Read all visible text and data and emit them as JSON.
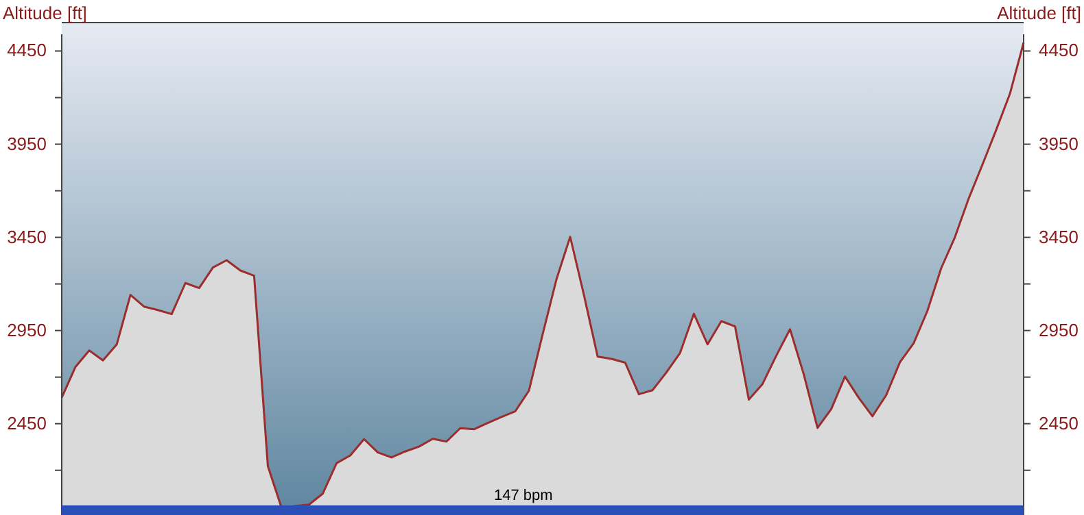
{
  "chart_data": {
    "type": "area",
    "ylabel": "Altitude [ft]",
    "y2label": "Altitude [ft]",
    "categories": [
      null,
      null,
      null,
      null,
      null,
      null,
      null,
      null,
      null,
      null,
      null,
      null,
      null,
      null,
      null,
      null,
      null,
      null,
      null,
      null,
      null,
      null,
      null,
      null,
      null,
      null,
      null,
      null,
      null,
      null,
      null,
      null,
      null,
      null,
      null,
      null,
      null,
      null,
      null,
      null,
      null,
      null,
      null,
      null,
      null,
      null,
      null,
      null,
      null,
      null,
      null,
      null,
      null,
      null,
      null,
      null,
      null,
      null,
      null,
      null,
      null,
      null,
      null,
      null,
      null,
      null,
      null,
      null,
      null,
      null,
      null
    ],
    "series": [
      {
        "color": "#9b2d2d",
        "values": [
          2590,
          2755,
          2843,
          2790,
          2875,
          3141,
          3078,
          3060,
          3038,
          3205,
          3178,
          3288,
          3327,
          3272,
          3244,
          2222,
          1998,
          2009,
          2016,
          2075,
          2238,
          2280,
          2367,
          2296,
          2269,
          2301,
          2327,
          2369,
          2354,
          2426,
          2420,
          2454,
          2486,
          2516,
          2627,
          2931,
          3224,
          3453,
          3141,
          2810,
          2798,
          2778,
          2608,
          2630,
          2725,
          2830,
          3040,
          2876,
          3000,
          2972,
          2579,
          2663,
          2815,
          2957,
          2715,
          2427,
          2528,
          2703,
          2589,
          2490,
          2603,
          2780,
          2882,
          3056,
          3284,
          3451,
          3658,
          3840,
          4026,
          4220,
          4495
        ]
      }
    ],
    "ylim": [
      1960,
      4540
    ],
    "yticks": [
      {
        "value": 2200,
        "label": null
      },
      2450,
      {
        "value": 2700,
        "label": null
      },
      2950,
      {
        "value": 3200,
        "label": null
      },
      3450,
      {
        "value": 3700,
        "label": null
      },
      3950,
      {
        "value": 4200,
        "label": null
      },
      4450
    ],
    "y2lim": [
      1960,
      4540
    ],
    "y2ticks": [
      {
        "value": 2200,
        "label": null
      },
      2450,
      {
        "value": 2700,
        "label": null
      },
      2950,
      {
        "value": 3200,
        "label": null
      },
      3450,
      {
        "value": 3700,
        "label": null
      },
      3950,
      {
        "value": 4200,
        "label": null
      },
      4450
    ],
    "annotations": [
      "147 bpm"
    ]
  }
}
